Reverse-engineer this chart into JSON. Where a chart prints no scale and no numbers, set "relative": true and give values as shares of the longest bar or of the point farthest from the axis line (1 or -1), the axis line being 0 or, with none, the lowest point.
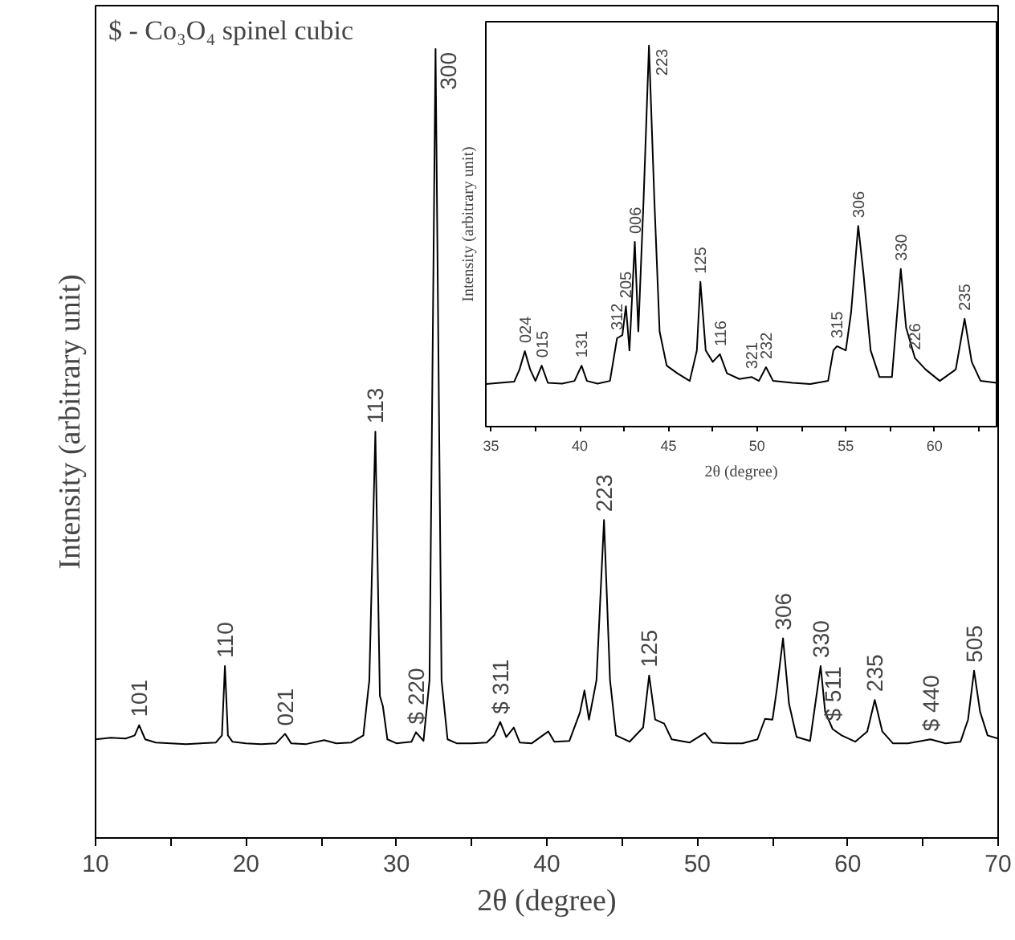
{
  "chart_data": [
    {
      "type": "line",
      "relative": true,
      "xlabel": "2θ (degree)",
      "ylabel": "Intensity (arbitrary unit)",
      "xlim": [
        10,
        70
      ],
      "xticks": [
        10,
        {
          "value": 15,
          "label": null
        },
        20,
        {
          "value": 25,
          "label": null
        },
        30,
        {
          "value": 35,
          "label": null
        },
        40,
        {
          "value": 45,
          "label": null
        },
        50,
        {
          "value": 55,
          "label": null
        },
        60,
        {
          "value": 65,
          "label": null
        },
        70
      ],
      "grid": false,
      "marker": "none",
      "line_style": "solid",
      "series": [
        {
          "color": "#000000",
          "x": [
            10,
            11,
            12,
            12.6,
            12.9,
            13.3,
            14,
            15,
            16,
            17,
            18,
            18.4,
            18.6,
            18.8,
            19.1,
            20,
            21,
            22,
            22.6,
            23,
            24,
            25.2,
            26,
            27,
            27.8,
            28.2,
            28.6,
            28.9,
            29.1,
            29.4,
            30,
            31,
            31.3,
            31.8,
            32.2,
            32.6,
            33,
            33.4,
            34,
            35,
            36,
            36.5,
            36.9,
            37.3,
            37.8,
            38.2,
            39,
            40.1,
            40.5,
            41.5,
            42.2,
            42.5,
            42.8,
            43.3,
            43.8,
            44.2,
            44.6,
            45.5,
            46.4,
            46.8,
            47.2,
            47.8,
            48.3,
            49.5,
            50.5,
            51,
            52,
            53,
            54,
            54.5,
            55,
            55.3,
            55.7,
            56.1,
            56.6,
            57.5,
            58.2,
            58.5,
            59,
            59.6,
            60.5,
            61.3,
            61.8,
            62.3,
            63,
            64,
            65.5,
            66.5,
            67.5,
            68,
            68.4,
            68.8,
            69.3,
            70
          ],
          "values": [
            0.125,
            0.127,
            0.126,
            0.13,
            0.143,
            0.125,
            0.121,
            0.12,
            0.119,
            0.12,
            0.121,
            0.13,
            0.218,
            0.13,
            0.122,
            0.12,
            0.119,
            0.12,
            0.132,
            0.12,
            0.119,
            0.124,
            0.12,
            0.121,
            0.13,
            0.2,
            0.515,
            0.18,
            0.167,
            0.125,
            0.12,
            0.122,
            0.134,
            0.123,
            0.2,
            1,
            0.2,
            0.125,
            0.12,
            0.12,
            0.121,
            0.13,
            0.147,
            0.128,
            0.14,
            0.121,
            0.12,
            0.135,
            0.122,
            0.123,
            0.159,
            0.187,
            0.15,
            0.2,
            0.403,
            0.2,
            0.13,
            0.122,
            0.14,
            0.206,
            0.15,
            0.145,
            0.125,
            0.121,
            0.133,
            0.121,
            0.12,
            0.12,
            0.125,
            0.151,
            0.15,
            0.19,
            0.253,
            0.17,
            0.128,
            0.123,
            0.218,
            0.16,
            0.138,
            0.13,
            0.122,
            0.135,
            0.175,
            0.135,
            0.12,
            0.12,
            0.125,
            0.12,
            0.122,
            0.15,
            0.212,
            0.16,
            0.13,
            0.126
          ]
        }
      ],
      "annotations": [
        "$ - Co₃O₄ spinel cubic",
        {
          "text": "101",
          "x": 12.9,
          "y": 0.143
        },
        {
          "text": "110",
          "x": 18.6,
          "y": 0.218
        },
        {
          "text": "021",
          "x": 22.6,
          "y": 0.132
        },
        {
          "text": "113",
          "x": 28.6,
          "y": 0.515
        },
        {
          "text": "$ 220",
          "x": 31.3,
          "y": 0.134
        },
        {
          "text": "300",
          "x": 32.6,
          "y": 1
        },
        {
          "text": "$ 311",
          "x": 36.9,
          "y": 0.147
        },
        {
          "text": "223",
          "x": 43.8,
          "y": 0.403
        },
        {
          "text": "125",
          "x": 46.8,
          "y": 0.206
        },
        {
          "text": "306",
          "x": 55.7,
          "y": 0.253
        },
        {
          "text": "330",
          "x": 58.2,
          "y": 0.218
        },
        {
          "text": "$ 511",
          "x": 59,
          "y": 0.138
        },
        {
          "text": "235",
          "x": 61.8,
          "y": 0.175
        },
        {
          "text": "$ 440",
          "x": 65.5,
          "y": 0.125
        },
        {
          "text": "505",
          "x": 68.4,
          "y": 0.212
        }
      ]
    },
    {
      "type": "line",
      "relative": true,
      "xlabel": "2θ (degree)",
      "ylabel": "Intensity (arbitrary unit)",
      "xlim": [
        34.7,
        63.5
      ],
      "xticks": [
        35,
        {
          "value": 37.5,
          "label": null
        },
        40,
        {
          "value": 42.5,
          "label": null
        },
        45,
        {
          "value": 47.5,
          "label": null
        },
        50,
        {
          "value": 52.5,
          "label": null
        },
        55,
        {
          "value": 57.5,
          "label": null
        },
        60,
        {
          "value": 62.5,
          "label": null
        }
      ],
      "grid": false,
      "marker": "none",
      "line_style": "solid",
      "series": [
        {
          "color": "#000000",
          "x": [
            34.7,
            35.5,
            36.3,
            36.6,
            36.9,
            37.2,
            37.5,
            37.85,
            38.2,
            39,
            39.7,
            40.1,
            40.4,
            41,
            41.7,
            42.1,
            42.4,
            42.6,
            42.8,
            43.1,
            43.3,
            43.6,
            43.9,
            44.2,
            44.5,
            44.9,
            45.5,
            46.2,
            46.6,
            46.8,
            47.1,
            47.5,
            47.9,
            48.3,
            49,
            49.7,
            50.1,
            50.5,
            50.9,
            52,
            53,
            54,
            54.3,
            54.5,
            55,
            55.3,
            55.7,
            56,
            56.4,
            56.9,
            57.6,
            57.9,
            58.1,
            58.4,
            58.9,
            59.5,
            60.3,
            61.2,
            61.7,
            62.1,
            62.6,
            63.5
          ],
          "values": [
            0.112,
            0.115,
            0.118,
            0.15,
            0.198,
            0.15,
            0.12,
            0.16,
            0.115,
            0.113,
            0.12,
            0.16,
            0.12,
            0.113,
            0.12,
            0.232,
            0.24,
            0.316,
            0.2,
            0.485,
            0.25,
            0.6,
            1,
            0.6,
            0.25,
            0.16,
            0.14,
            0.12,
            0.2,
            0.38,
            0.2,
            0.17,
            0.19,
            0.14,
            0.125,
            0.13,
            0.12,
            0.156,
            0.12,
            0.115,
            0.112,
            0.12,
            0.2,
            0.211,
            0.2,
            0.3,
            0.527,
            0.4,
            0.2,
            0.13,
            0.13,
            0.3,
            0.414,
            0.26,
            0.18,
            0.15,
            0.12,
            0.15,
            0.283,
            0.17,
            0.12,
            0.115
          ]
        }
      ],
      "annotations": [
        {
          "text": "024",
          "x": 36.9,
          "y": 0.198
        },
        {
          "text": "015",
          "x": 37.85,
          "y": 0.16
        },
        {
          "text": "131",
          "x": 40.1,
          "y": 0.16
        },
        {
          "text": "312",
          "x": 42.1,
          "y": 0.232
        },
        {
          "text": "205",
          "x": 42.6,
          "y": 0.316
        },
        {
          "text": "006",
          "x": 43.1,
          "y": 0.485
        },
        {
          "text": "223",
          "x": 43.9,
          "y": 1
        },
        {
          "text": "125",
          "x": 46.8,
          "y": 0.38
        },
        {
          "text": "116",
          "x": 47.9,
          "y": 0.19
        },
        {
          "text": "321",
          "x": 49.7,
          "y": 0.13
        },
        {
          "text": "232",
          "x": 50.5,
          "y": 0.156
        },
        {
          "text": "315",
          "x": 54.5,
          "y": 0.211
        },
        {
          "text": "306",
          "x": 55.7,
          "y": 0.527
        },
        {
          "text": "330",
          "x": 58.1,
          "y": 0.414
        },
        {
          "text": "226",
          "x": 58.9,
          "y": 0.18
        },
        {
          "text": "235",
          "x": 61.7,
          "y": 0.283
        }
      ]
    }
  ]
}
